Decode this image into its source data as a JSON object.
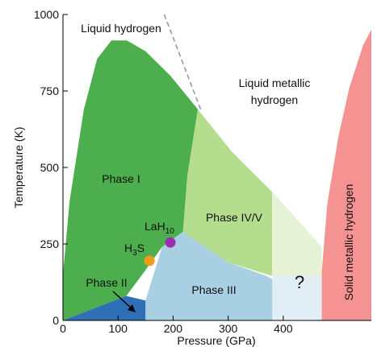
{
  "chart_data": {
    "type": "phase-diagram",
    "xlabel": "Pressure (GPa)",
    "ylabel": "Temperature (K)",
    "xlim": [
      0,
      560
    ],
    "ylim": [
      0,
      1000
    ],
    "x_ticks": [
      0,
      100,
      200,
      300,
      400
    ],
    "y_ticks": [
      0,
      250,
      500,
      750,
      1000
    ],
    "colors": {
      "phase_I": "#4cae4c",
      "phase_II": "#2f6fb6",
      "phase_III": "#a9cfe3",
      "phase_IV_V": "#b4de8e",
      "unknown_green": "#e6f2d6",
      "unknown_blue": "#e2eef5",
      "solid_metallic": "#f59393",
      "boundary_dashed": "#999999",
      "la_h10": "#9b2fae",
      "h3s": "#f39a1e"
    },
    "regions": [
      {
        "label": "Liquid hydrogen",
        "polygon": [
          [
            0,
            1000
          ],
          [
            0,
            900
          ],
          [
            0,
            1000
          ]
        ]
      },
      {
        "label": "Phase I",
        "polygon": [
          [
            0,
            0
          ],
          [
            0,
            150
          ],
          [
            12,
            390
          ],
          [
            38,
            690
          ],
          [
            62,
            855
          ],
          [
            88,
            915
          ],
          [
            116,
            915
          ],
          [
            150,
            880
          ],
          [
            195,
            800
          ],
          [
            245,
            690
          ],
          [
            226,
            475
          ],
          [
            218,
            290
          ],
          [
            180,
            240
          ],
          [
            148,
            160
          ],
          [
            115,
            80
          ],
          [
            0,
            0
          ]
        ]
      },
      {
        "label": "Phase II",
        "polygon": [
          [
            0,
            0
          ],
          [
            115,
            80
          ],
          [
            150,
            65
          ],
          [
            150,
            0
          ]
        ]
      },
      {
        "label": "Phase III",
        "polygon": [
          [
            150,
            0
          ],
          [
            150,
            65
          ],
          [
            180,
            240
          ],
          [
            218,
            290
          ],
          [
            250,
            250
          ],
          [
            300,
            190
          ],
          [
            370,
            145
          ],
          [
            440,
            75
          ],
          [
            470,
            40
          ],
          [
            470,
            0
          ]
        ]
      },
      {
        "label": "Phase IV/V",
        "polygon": [
          [
            218,
            290
          ],
          [
            226,
            475
          ],
          [
            245,
            690
          ],
          [
            305,
            555
          ],
          [
            380,
            420
          ],
          [
            380,
            145
          ],
          [
            300,
            190
          ],
          [
            250,
            250
          ]
        ]
      },
      {
        "label": "?",
        "polygon": [
          [
            380,
            420
          ],
          [
            430,
            320
          ],
          [
            470,
            240
          ],
          [
            470,
            0
          ],
          [
            380,
            0
          ]
        ]
      },
      {
        "label": "Liquid metallic hydrogen",
        "polygon": []
      },
      {
        "label": "Solid metallic hydrogen",
        "polygon": [
          [
            470,
            0
          ],
          [
            470,
            160
          ],
          [
            480,
            380
          ],
          [
            500,
            600
          ],
          [
            520,
            760
          ],
          [
            545,
            900
          ],
          [
            560,
            950
          ],
          [
            560,
            0
          ]
        ]
      }
    ],
    "melting_line_dashed": [
      [
        184,
        1000
      ],
      [
        250,
        690
      ]
    ],
    "points": [
      {
        "label": "LaH10",
        "x": 195,
        "y": 255
      },
      {
        "label": "H3S",
        "x": 157,
        "y": 195
      }
    ],
    "annotations": [
      {
        "text": "Liquid hydrogen"
      },
      {
        "text": "Liquid metallic"
      },
      {
        "text": "hydrogen"
      },
      {
        "text": "Phase I"
      },
      {
        "text": "Phase IV/V"
      },
      {
        "text": "Phase III"
      },
      {
        "text": "Phase II"
      },
      {
        "text": "?"
      },
      {
        "text": "Solid metallic hydrogen"
      },
      {
        "text": "LaH"
      },
      {
        "text": "10"
      },
      {
        "text": "H"
      },
      {
        "text": "3"
      },
      {
        "text": "S"
      }
    ]
  }
}
